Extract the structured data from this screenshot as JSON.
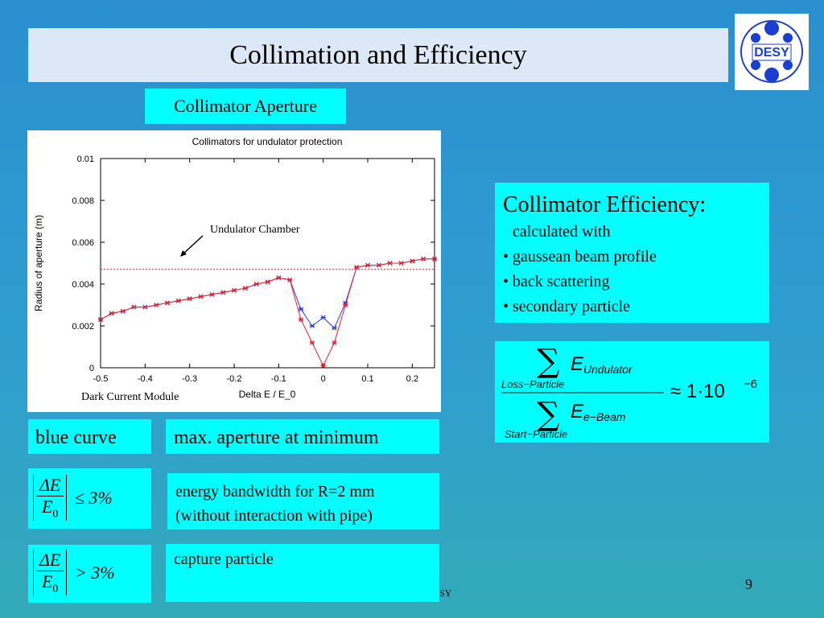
{
  "slide": {
    "title": "Collimation and Efficiency",
    "logo": "DESY",
    "chart_heading": "Collimator Aperture",
    "chart_caption": "Dark Current Module",
    "row1": {
      "left": "blue curve",
      "right": "max. aperture at minimum"
    },
    "formula1": {
      "numerator": "ΔE",
      "denominator": "E",
      "subscript": "0",
      "relation": "≤ 3%"
    },
    "row2": {
      "lines": [
        "energy bandwidth for R=2 mm",
        "(without interaction with pipe)"
      ]
    },
    "formula2": {
      "numerator": "ΔE",
      "denominator": "E",
      "subscript": "0",
      "relation": "> 3%"
    },
    "row3": {
      "text": "capture particle"
    },
    "efficiency": {
      "heading": "Collimator Efficiency:",
      "lines": [
        "calculated with",
        "• gaussean beam profile",
        "• back scattering",
        "• secondary particle"
      ]
    },
    "efficiency_formula": {
      "sum": "∑",
      "top_var": "E",
      "top_sub": "Undulator",
      "top_range": "Loss−Particle",
      "bottom_var": "E",
      "bottom_sub": "e−Beam",
      "bottom_range": "Start−Particle",
      "result": "≈ 1·10",
      "exponent": "−6"
    },
    "footer": "SY",
    "page_number": "9"
  },
  "chart_data": {
    "type": "line",
    "title": "Collimators for undulator protection",
    "x_label": "Delta E / E_0",
    "y_label": "Radius of aperture (m)",
    "x": [
      -0.5,
      -0.475,
      -0.45,
      -0.425,
      -0.4,
      -0.375,
      -0.35,
      -0.325,
      -0.3,
      -0.275,
      -0.25,
      -0.225,
      -0.2,
      -0.175,
      -0.15,
      -0.125,
      -0.1,
      -0.075,
      -0.05,
      -0.025,
      0,
      0.025,
      0.05,
      0.075,
      0.1,
      0.125,
      0.15,
      0.175,
      0.2,
      0.225,
      0.25
    ],
    "series": [
      {
        "color": "#e8202a",
        "values": [
          0.0023,
          0.0026,
          0.0027,
          0.0029,
          0.0029,
          0.003,
          0.0031,
          0.0032,
          0.0033,
          0.0034,
          0.0035,
          0.0036,
          0.0037,
          0.0038,
          0.004,
          0.0041,
          0.0043,
          0.0042,
          0.0023,
          0.0012,
          0.0001,
          0.0012,
          0.003,
          0.0048,
          0.0049,
          0.0049,
          0.005,
          0.005,
          0.0051,
          0.0052,
          0.0052
        ]
      },
      {
        "color": "#2a3ae8",
        "values": [
          0.0023,
          0.0026,
          0.0027,
          0.0029,
          0.0029,
          0.003,
          0.0031,
          0.0032,
          0.0033,
          0.0034,
          0.0035,
          0.0036,
          0.0037,
          0.0038,
          0.004,
          0.0041,
          0.0043,
          0.0042,
          0.0028,
          0.002,
          0.0024,
          0.0019,
          0.0031,
          0.0048,
          0.0049,
          0.0049,
          0.005,
          0.005,
          0.0051,
          0.0052,
          0.0052
        ]
      }
    ],
    "hline": 0.0047,
    "hline_color": "#e8202a",
    "annotation": "Undulator Chamber",
    "xlim": [
      -0.5,
      0.25
    ],
    "ylim": [
      0,
      0.01
    ],
    "xticks": [
      -0.5,
      -0.4,
      -0.3,
      -0.2,
      -0.1,
      0,
      0.1,
      0.2
    ],
    "yticks": [
      0,
      0.002,
      0.004,
      0.006,
      0.008,
      0.01
    ]
  }
}
